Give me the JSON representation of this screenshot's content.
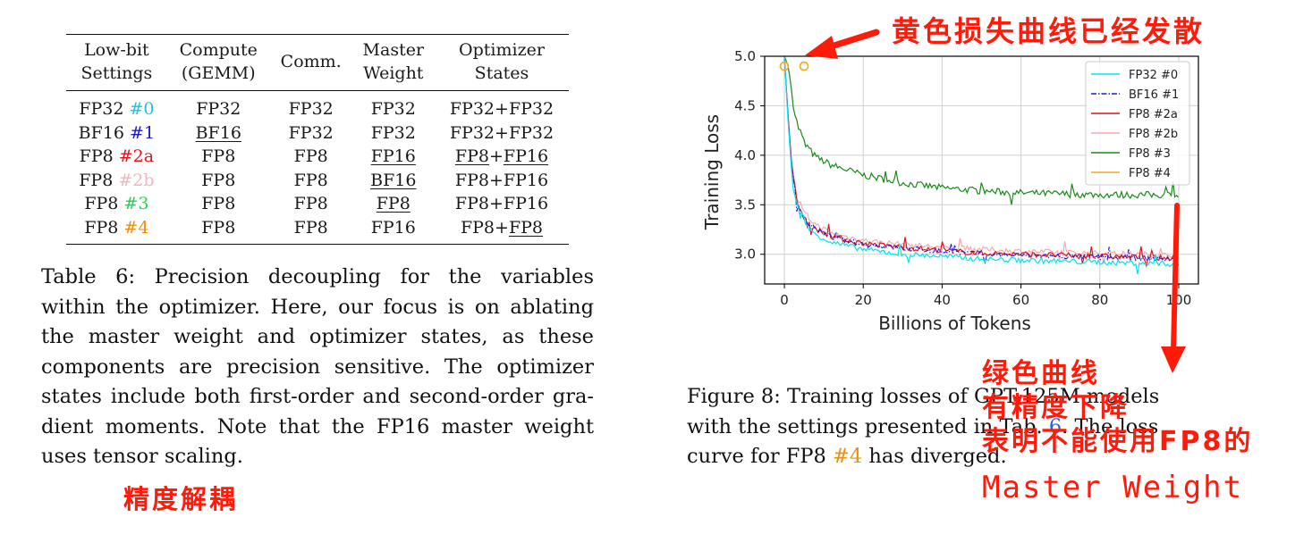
{
  "table": {
    "headers": [
      [
        "Low-bit",
        "Settings"
      ],
      [
        "Compute",
        "(GEMM)"
      ],
      [
        "Comm."
      ],
      [
        "Master",
        "Weight"
      ],
      [
        "Optimizer",
        "States"
      ]
    ],
    "rows": [
      {
        "prefix": "FP32",
        "tag": "#0",
        "tag_color": "c0",
        "cells": [
          [
            {
              "t": "FP32"
            }
          ],
          [
            {
              "t": "FP32"
            }
          ],
          [
            {
              "t": "FP32"
            }
          ],
          [
            {
              "t": "FP32+FP32"
            }
          ]
        ]
      },
      {
        "prefix": "BF16",
        "tag": "#1",
        "tag_color": "c1",
        "cells": [
          [
            {
              "t": "BF16",
              "u": true
            }
          ],
          [
            {
              "t": "FP32"
            }
          ],
          [
            {
              "t": "FP32"
            }
          ],
          [
            {
              "t": "FP32+FP32"
            }
          ]
        ]
      },
      {
        "prefix": "FP8",
        "tag": "#2a",
        "tag_color": "c2a",
        "cells": [
          [
            {
              "t": "FP8"
            }
          ],
          [
            {
              "t": "FP8"
            }
          ],
          [
            {
              "t": "FP16",
              "u": true
            }
          ],
          [
            {
              "t": "FP8",
              "u": true
            },
            {
              "t": "+"
            },
            {
              "t": "FP16",
              "u": true
            }
          ]
        ]
      },
      {
        "prefix": "FP8",
        "tag": "#2b",
        "tag_color": "c2b",
        "cells": [
          [
            {
              "t": "FP8"
            }
          ],
          [
            {
              "t": "FP8"
            }
          ],
          [
            {
              "t": "BF16",
              "u": true
            }
          ],
          [
            {
              "t": "FP8+FP16"
            }
          ]
        ]
      },
      {
        "prefix": "FP8",
        "tag": "#3",
        "tag_color": "c3",
        "cells": [
          [
            {
              "t": "FP8"
            }
          ],
          [
            {
              "t": "FP8"
            }
          ],
          [
            {
              "t": "FP8",
              "u": true
            }
          ],
          [
            {
              "t": "FP8+FP16"
            }
          ]
        ]
      },
      {
        "prefix": "FP8",
        "tag": "#4",
        "tag_color": "c4",
        "cells": [
          [
            {
              "t": "FP8"
            }
          ],
          [
            {
              "t": "FP8"
            }
          ],
          [
            {
              "t": "FP16"
            }
          ],
          [
            {
              "t": "FP8+"
            },
            {
              "t": "FP8",
              "u": true
            }
          ]
        ]
      }
    ]
  },
  "caption6": {
    "lines": [
      "Table 6:  Precision decoupling for the variables",
      "within the optimizer. Here, our focus is on ablating",
      "the master weight and optimizer states, as these",
      "components are precision sensitive. The optimizer",
      "states include both first-order and second-order gra-",
      "dient moments. Note that the FP16 master weight",
      "uses tensor scaling."
    ]
  },
  "caption8": {
    "line1": "Figure 8:  Training losses of GPT-125M models",
    "line2_pre": "with the settings presented in Tab. ",
    "line2_ref": "6",
    "line2_post": ".  The loss",
    "line3_pre": "curve for FP8 ",
    "line3_tag": "#4",
    "line3_post": " has diverged."
  },
  "notes": {
    "top": "黄色损失曲线已经发散",
    "bottom": "精度解耦",
    "green_lines": [
      "绿色曲线",
      "有精度下降",
      "表明不能使用FP8的"
    ],
    "master": "Master Weight"
  },
  "chart_data": {
    "type": "line",
    "xlabel": "Billions of Tokens",
    "ylabel": "Training Loss",
    "xlim": [
      -5,
      105
    ],
    "ylim": [
      2.7,
      5.0
    ],
    "xticks": [
      0,
      20,
      40,
      60,
      80,
      100
    ],
    "yticks": [
      3.0,
      3.5,
      4.0,
      4.5,
      5.0
    ],
    "grid": true,
    "legend_position": "top-right",
    "series": [
      {
        "name": "FP32 #0",
        "color": "#00e5ee",
        "dash": "",
        "x": [
          0,
          1,
          2,
          3,
          5,
          8,
          12,
          20,
          30,
          40,
          50,
          60,
          70,
          80,
          90,
          100
        ],
        "y": [
          5.0,
          4.3,
          3.75,
          3.5,
          3.3,
          3.2,
          3.12,
          3.05,
          3.0,
          2.98,
          2.95,
          2.94,
          2.93,
          2.92,
          2.91,
          2.9
        ]
      },
      {
        "name": "BF16 #1",
        "color": "#1f1fd0",
        "dash": "6,2,1.5,2",
        "x": [
          0,
          1,
          2,
          3,
          5,
          8,
          12,
          20,
          30,
          40,
          50,
          60,
          70,
          80,
          90,
          100
        ],
        "y": [
          5.0,
          4.35,
          3.8,
          3.55,
          3.35,
          3.25,
          3.17,
          3.1,
          3.06,
          3.03,
          3.0,
          2.99,
          2.98,
          2.97,
          2.96,
          2.95
        ]
      },
      {
        "name": "FP8 #2a",
        "color": "#e0141e",
        "dash": "",
        "x": [
          0,
          1,
          2,
          3,
          5,
          8,
          12,
          20,
          30,
          40,
          50,
          60,
          70,
          80,
          90,
          100
        ],
        "y": [
          5.0,
          4.35,
          3.82,
          3.56,
          3.36,
          3.26,
          3.18,
          3.11,
          3.07,
          3.04,
          3.01,
          3.0,
          2.99,
          2.98,
          2.97,
          2.96
        ]
      },
      {
        "name": "FP8 #2b",
        "color": "#f4aab4",
        "dash": "",
        "x": [
          0,
          1,
          2,
          3,
          5,
          8,
          12,
          20,
          30,
          40,
          50,
          60,
          70,
          80,
          90,
          100
        ],
        "y": [
          5.0,
          4.38,
          3.85,
          3.6,
          3.4,
          3.3,
          3.21,
          3.14,
          3.1,
          3.07,
          3.05,
          3.03,
          3.02,
          3.01,
          3.0,
          2.99
        ]
      },
      {
        "name": "FP8 #3",
        "color": "#1a8a1a",
        "dash": "",
        "x": [
          0,
          1,
          2,
          3,
          5,
          8,
          12,
          20,
          30,
          40,
          50,
          60,
          70,
          80,
          90,
          100
        ],
        "y": [
          5.0,
          4.9,
          4.6,
          4.35,
          4.12,
          3.98,
          3.9,
          3.8,
          3.72,
          3.67,
          3.64,
          3.62,
          3.61,
          3.6,
          3.6,
          3.6
        ]
      },
      {
        "name": "FP8 #4",
        "color": "#f5a623",
        "dash": "",
        "markers_only": true,
        "x": [
          0,
          5
        ],
        "y": [
          4.9,
          4.9
        ]
      }
    ]
  }
}
